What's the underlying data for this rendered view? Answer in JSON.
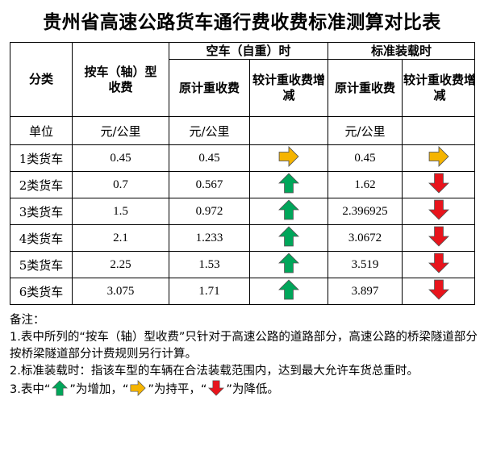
{
  "title": "贵州省高速公路货车通行费收费标准测算对比表",
  "headers": {
    "category": "分类",
    "by_type": "按车（轴）型收费",
    "empty_section": "空车（自重）时",
    "loaded_section": "标准装载时",
    "orig_fee": "原计重收费",
    "compare": "较计重收费增减",
    "unit_label": "单位",
    "unit": "元/公里"
  },
  "rows": [
    {
      "label": "1类货车",
      "by_type": "0.45",
      "empty_orig": "0.45",
      "empty_cmp": "flat",
      "loaded_orig": "0.45",
      "loaded_cmp": "flat"
    },
    {
      "label": "2类货车",
      "by_type": "0.7",
      "empty_orig": "0.567",
      "empty_cmp": "up",
      "loaded_orig": "1.62",
      "loaded_cmp": "down"
    },
    {
      "label": "3类货车",
      "by_type": "1.5",
      "empty_orig": "0.972",
      "empty_cmp": "up",
      "loaded_orig": "2.396925",
      "loaded_cmp": "down"
    },
    {
      "label": "4类货车",
      "by_type": "2.1",
      "empty_orig": "1.233",
      "empty_cmp": "up",
      "loaded_orig": "3.0672",
      "loaded_cmp": "down"
    },
    {
      "label": "5类货车",
      "by_type": "2.25",
      "empty_orig": "1.53",
      "empty_cmp": "up",
      "loaded_orig": "3.519",
      "loaded_cmp": "down"
    },
    {
      "label": "6类货车",
      "by_type": "3.075",
      "empty_orig": "1.71",
      "empty_cmp": "up",
      "loaded_orig": "3.897",
      "loaded_cmp": "down"
    }
  ],
  "arrow_colors": {
    "up": "#00a65a",
    "flat": "#f5b400",
    "down": "#e8141c"
  },
  "notes": {
    "heading": "备注：",
    "n1": "1.表中所列的“按车（轴）型收费”只针对于高速公路的道路部分，高速公路的桥梁隧道部分按桥梁隧道部分计费规则另行计算。",
    "n2": "2.标准装载时：指该车型的车辆在合法装载范围内，达到最大允许车货总重时。",
    "n3_prefix": "3.表中“",
    "n3_up": "”为增加，“",
    "n3_flat": "”为持平，“",
    "n3_down": "”为降低。"
  }
}
